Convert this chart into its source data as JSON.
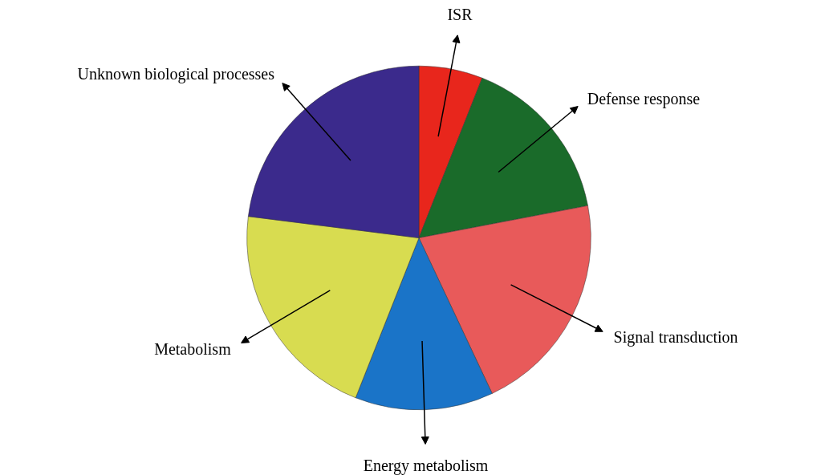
{
  "chart_data": {
    "type": "pie",
    "categories": [
      "ISR",
      "Defense response",
      "Signal transduction",
      "Energy metabolism",
      "Metabolism",
      "Unknown biological processes"
    ],
    "values": [
      6,
      16,
      21,
      13,
      21,
      23
    ],
    "colors": [
      "#e8261c",
      "#1a6b2a",
      "#e85a5a",
      "#1a74c8",
      "#d8dc50",
      "#3b2a8c"
    ],
    "legend": false
  }
}
